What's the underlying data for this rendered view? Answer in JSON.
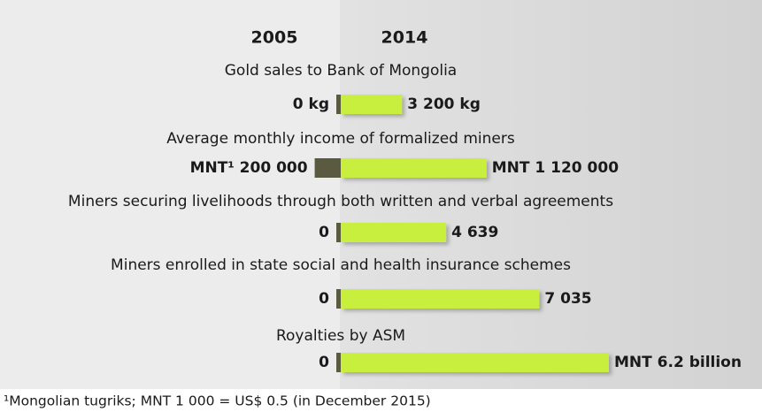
{
  "chart_data": {
    "type": "bar",
    "categories": [
      "Gold sales to Bank of Mongolia",
      "Average monthly income of formalized miners",
      "Miners securing livelihoods through both written and verbal agreements",
      "Miners enrolled in state social and health insurance schemes",
      "Royalties by ASM"
    ],
    "series": [
      {
        "name": "2005",
        "color": "#5a5a40",
        "values": [
          0,
          200000,
          0,
          0,
          0
        ],
        "value_labels": [
          "0 kg",
          "MNT¹ 200 000",
          "0",
          "0",
          "0"
        ]
      },
      {
        "name": "2014",
        "color": "#c8ef3c",
        "values": [
          3200,
          1120000,
          4639,
          7035,
          6200000000
        ],
        "value_labels": [
          "3 200 kg",
          "MNT 1 120 000",
          "4 639",
          "7 035",
          "MNT 6.2 billion"
        ]
      }
    ],
    "xlims": [
      [
        0,
        14000
      ],
      [
        0,
        2060000
      ],
      [
        0,
        11800
      ],
      [
        0,
        9500
      ],
      [
        0,
        6200000000
      ]
    ],
    "footnote": "¹Mongolian tugriks; MNT 1 000 = US$ 0.5 (in December 2015)"
  }
}
